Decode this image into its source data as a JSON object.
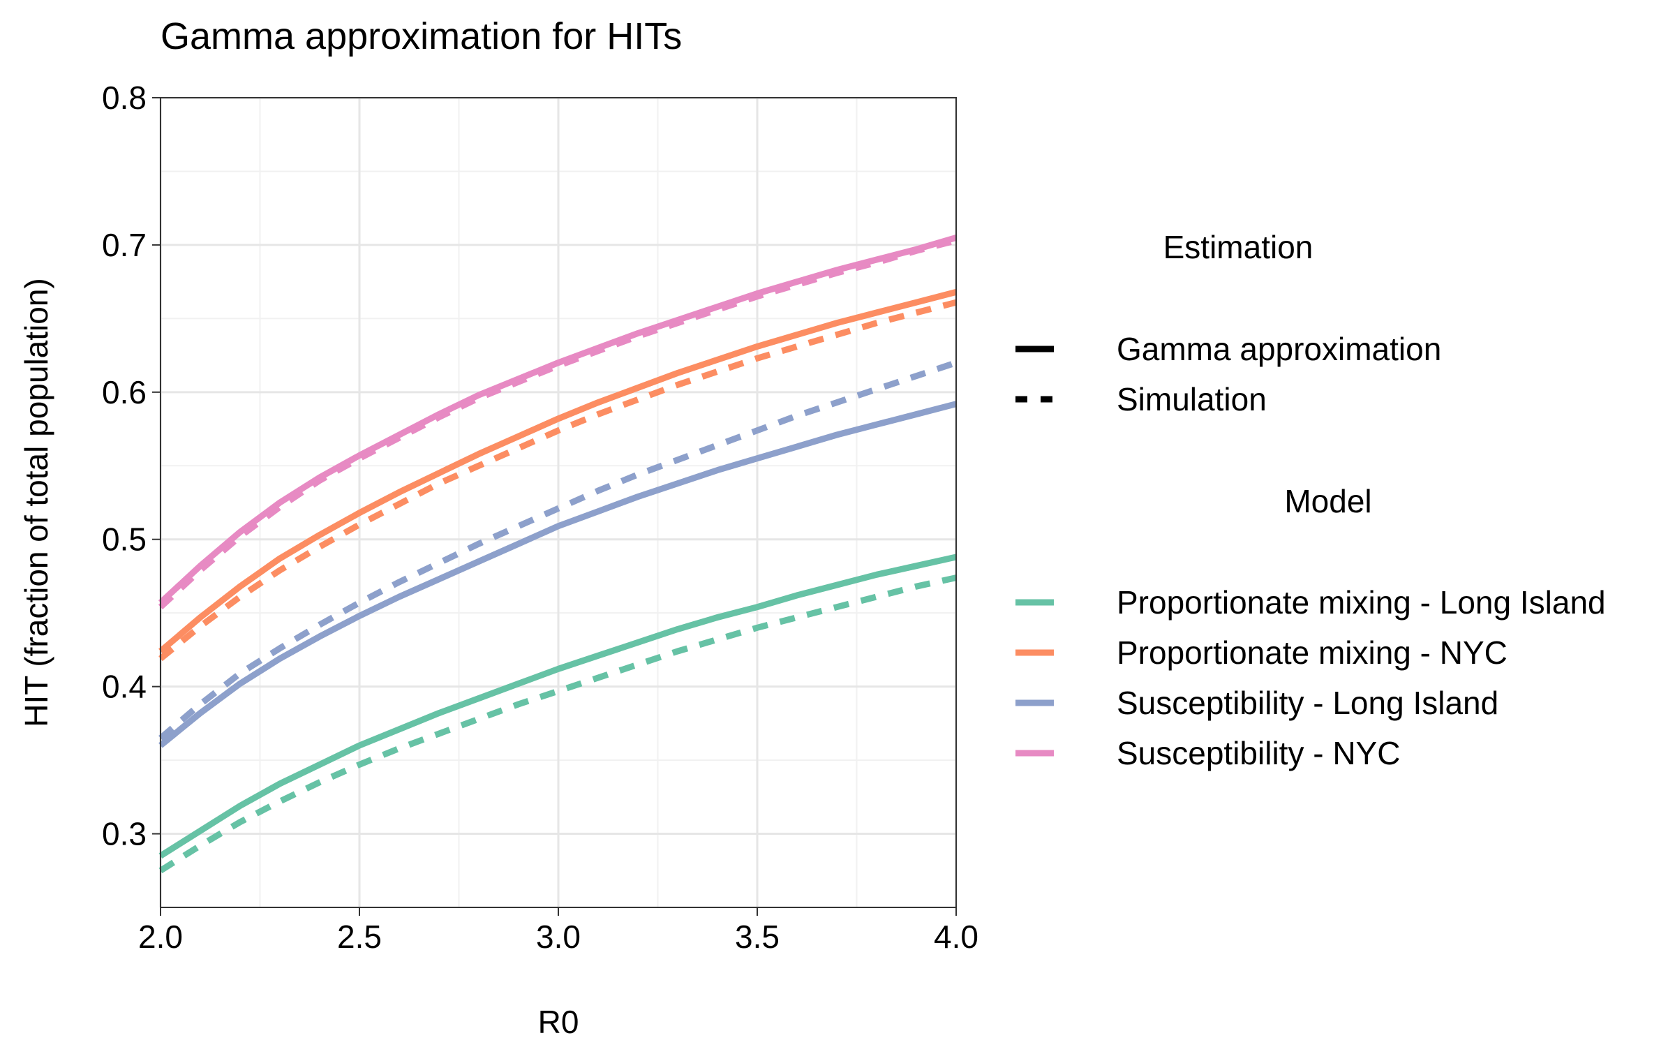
{
  "chart_data": {
    "type": "line",
    "title": "Gamma approximation for HITs",
    "xlabel": "R0",
    "ylabel": "HIT (fraction of total population)",
    "xlim": [
      2.0,
      4.0
    ],
    "ylim": [
      0.25,
      0.8
    ],
    "xticks": [
      2.0,
      2.5,
      3.0,
      3.5,
      4.0
    ],
    "xtick_labels": [
      "2.0",
      "2.5",
      "3.0",
      "3.5",
      "4.0"
    ],
    "yticks": [
      0.3,
      0.4,
      0.5,
      0.6,
      0.7,
      0.8
    ],
    "ytick_labels": [
      "0.3",
      "0.4",
      "0.5",
      "0.6",
      "0.7",
      "0.8"
    ],
    "grid": true,
    "legend_placement": "right",
    "x": [
      2.0,
      2.1,
      2.2,
      2.3,
      2.4,
      2.5,
      2.6,
      2.7,
      2.8,
      2.9,
      3.0,
      3.1,
      3.2,
      3.3,
      3.4,
      3.5,
      3.6,
      3.7,
      3.8,
      3.9,
      4.0
    ],
    "series": [
      {
        "name": "Proportionate mixing - Long Island",
        "model": 0,
        "estimation": 0,
        "values": [
          0.285,
          0.302,
          0.319,
          0.334,
          0.347,
          0.36,
          0.371,
          0.382,
          0.392,
          0.402,
          0.412,
          0.421,
          0.43,
          0.439,
          0.447,
          0.454,
          0.462,
          0.469,
          0.476,
          0.482,
          0.488
        ]
      },
      {
        "name": "Proportionate mixing - Long Island",
        "model": 0,
        "estimation": 1,
        "values": [
          0.275,
          0.292,
          0.308,
          0.322,
          0.335,
          0.347,
          0.358,
          0.368,
          0.378,
          0.388,
          0.397,
          0.406,
          0.415,
          0.424,
          0.432,
          0.44,
          0.447,
          0.454,
          0.461,
          0.468,
          0.474
        ]
      },
      {
        "name": "Proportionate mixing - NYC",
        "model": 1,
        "estimation": 0,
        "values": [
          0.424,
          0.447,
          0.468,
          0.487,
          0.503,
          0.518,
          0.532,
          0.545,
          0.558,
          0.57,
          0.582,
          0.593,
          0.603,
          0.613,
          0.622,
          0.631,
          0.639,
          0.647,
          0.654,
          0.661,
          0.668
        ]
      },
      {
        "name": "Proportionate mixing - NYC",
        "model": 1,
        "estimation": 1,
        "values": [
          0.419,
          0.441,
          0.461,
          0.479,
          0.495,
          0.51,
          0.524,
          0.538,
          0.55,
          0.562,
          0.574,
          0.585,
          0.595,
          0.605,
          0.614,
          0.623,
          0.631,
          0.639,
          0.647,
          0.654,
          0.661
        ]
      },
      {
        "name": "Susceptibility - Long Island",
        "model": 2,
        "estimation": 0,
        "values": [
          0.36,
          0.382,
          0.402,
          0.419,
          0.434,
          0.448,
          0.461,
          0.473,
          0.485,
          0.497,
          0.509,
          0.519,
          0.529,
          0.538,
          0.547,
          0.555,
          0.563,
          0.571,
          0.578,
          0.585,
          0.592
        ]
      },
      {
        "name": "Susceptibility - Long Island",
        "model": 2,
        "estimation": 1,
        "values": [
          0.365,
          0.388,
          0.409,
          0.426,
          0.442,
          0.457,
          0.471,
          0.484,
          0.497,
          0.509,
          0.521,
          0.533,
          0.544,
          0.554,
          0.564,
          0.574,
          0.584,
          0.593,
          0.602,
          0.611,
          0.62
        ]
      },
      {
        "name": "Susceptibility - NYC",
        "model": 3,
        "estimation": 0,
        "values": [
          0.457,
          0.482,
          0.505,
          0.525,
          0.542,
          0.557,
          0.571,
          0.585,
          0.598,
          0.609,
          0.62,
          0.63,
          0.64,
          0.649,
          0.658,
          0.667,
          0.675,
          0.683,
          0.69,
          0.697,
          0.705
        ]
      },
      {
        "name": "Susceptibility - NYC",
        "model": 3,
        "estimation": 1,
        "values": [
          0.454,
          0.479,
          0.502,
          0.522,
          0.54,
          0.555,
          0.569,
          0.583,
          0.596,
          0.607,
          0.618,
          0.628,
          0.638,
          0.647,
          0.656,
          0.665,
          0.673,
          0.681,
          0.688,
          0.696,
          0.703
        ]
      }
    ],
    "legend": {
      "estimation_title": "Estimation",
      "estimation_items": [
        {
          "label": "Gamma approximation",
          "dash": "solid"
        },
        {
          "label": "Simulation",
          "dash": "dashed"
        }
      ],
      "model_title": "Model",
      "model_items": [
        {
          "label": "Proportionate mixing - Long Island",
          "color": "#66c2a5"
        },
        {
          "label": "Proportionate mixing - NYC",
          "color": "#fc8d62"
        },
        {
          "label": "Susceptibility - Long Island",
          "color": "#8da0cb"
        },
        {
          "label": "Susceptibility - NYC",
          "color": "#e78ac3"
        }
      ]
    }
  }
}
